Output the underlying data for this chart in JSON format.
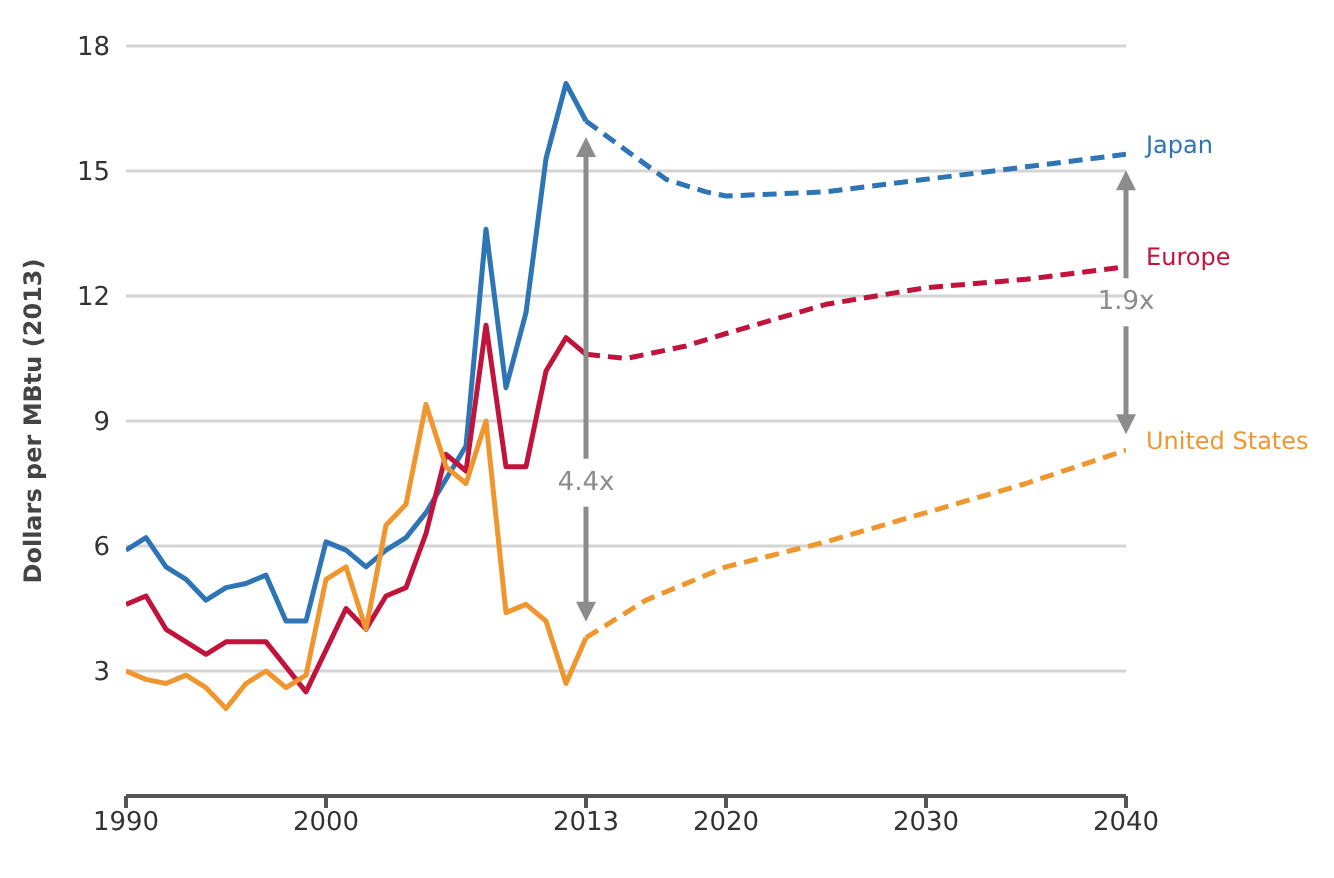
{
  "chart_data": {
    "type": "line",
    "ylabel": "Dollars per MBtu (2013)",
    "xlim": [
      1990,
      2040
    ],
    "xticks": [
      1990,
      2000,
      2013,
      2020,
      2030,
      2040
    ],
    "ylim": [
      0,
      18
    ],
    "yticks": [
      3,
      6,
      9,
      12,
      15,
      18
    ],
    "grid": "y",
    "marker": "none",
    "line_style": "solid",
    "series": [
      {
        "color": "#2e75b6",
        "x": [
          1990,
          1991,
          1992,
          1993,
          1994,
          1995,
          1996,
          1997,
          1998,
          1999,
          2000,
          2001,
          2002,
          2003,
          2004,
          2005,
          2006,
          2007,
          2008,
          2009,
          2010,
          2011,
          2012,
          2013
        ],
        "values": [
          5.9,
          6.2,
          5.5,
          5.2,
          4.7,
          5.0,
          5.1,
          5.3,
          4.2,
          4.2,
          6.1,
          5.9,
          5.5,
          5.9,
          6.2,
          6.8,
          7.6,
          8.4,
          13.6,
          9.8,
          11.6,
          15.3,
          17.1,
          16.2
        ]
      },
      {
        "color": "#c0143c",
        "x": [
          1990,
          1991,
          1992,
          1993,
          1994,
          1995,
          1996,
          1997,
          1998,
          1999,
          2000,
          2001,
          2002,
          2003,
          2004,
          2005,
          2006,
          2007,
          2008,
          2009,
          2010,
          2011,
          2012,
          2013
        ],
        "values": [
          4.6,
          4.8,
          4.0,
          3.7,
          3.4,
          3.7,
          3.7,
          3.7,
          3.1,
          2.5,
          3.5,
          4.5,
          4.0,
          4.8,
          5.0,
          6.3,
          8.2,
          7.8,
          11.3,
          7.9,
          7.9,
          10.2,
          11.0,
          10.6
        ]
      },
      {
        "color": "#f0962e",
        "x": [
          1990,
          1991,
          1992,
          1993,
          1994,
          1995,
          1996,
          1997,
          1998,
          1999,
          2000,
          2001,
          2002,
          2003,
          2004,
          2005,
          2006,
          2007,
          2008,
          2009,
          2010,
          2011,
          2012,
          2013
        ],
        "values": [
          3.0,
          2.8,
          2.7,
          2.9,
          2.6,
          2.1,
          2.7,
          3.0,
          2.6,
          2.9,
          5.2,
          5.5,
          4.0,
          6.5,
          7.0,
          9.4,
          7.9,
          7.5,
          9.0,
          4.4,
          4.6,
          4.2,
          2.7,
          3.8
        ]
      },
      {
        "name": "Japan",
        "color": "#2e75b6",
        "line_style": "dashed",
        "x": [
          2013,
          2015,
          2017,
          2019,
          2020,
          2025,
          2030,
          2035,
          2040
        ],
        "values": [
          16.2,
          15.5,
          14.8,
          14.5,
          14.4,
          14.5,
          14.8,
          15.1,
          15.4
        ]
      },
      {
        "name": "Europe",
        "color": "#c0143c",
        "line_style": "dashed",
        "x": [
          2013,
          2015,
          2018,
          2020,
          2025,
          2030,
          2035,
          2040
        ],
        "values": [
          10.6,
          10.5,
          10.8,
          11.1,
          11.8,
          12.2,
          12.4,
          12.7
        ]
      },
      {
        "name": "United States",
        "color": "#f0962e",
        "line_style": "dashed",
        "x": [
          2013,
          2016,
          2020,
          2025,
          2030,
          2035,
          2040
        ],
        "values": [
          3.8,
          4.7,
          5.5,
          6.1,
          6.8,
          7.5,
          8.3
        ]
      }
    ],
    "annotations": [
      "4.4x",
      "1.9x"
    ]
  }
}
